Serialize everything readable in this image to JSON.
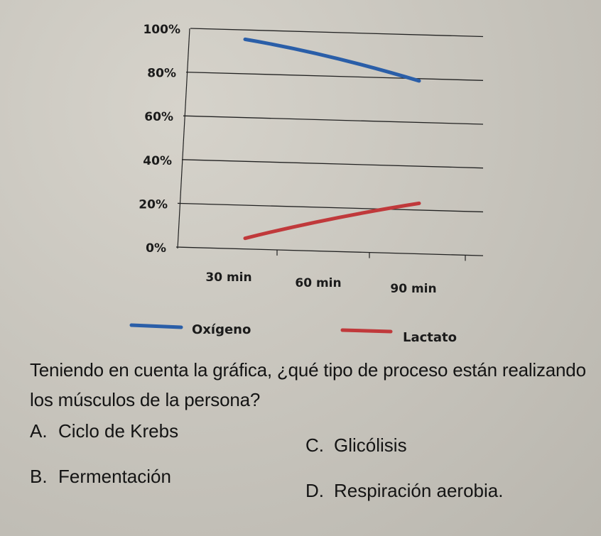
{
  "chart_data": {
    "type": "line",
    "categories": [
      "30 min",
      "60 min",
      "90 min"
    ],
    "y_ticks": [
      "100%",
      "80%",
      "60%",
      "40%",
      "20%",
      "0%"
    ],
    "y_tick_values": [
      100,
      80,
      60,
      40,
      20,
      0
    ],
    "ylim": [
      0,
      100
    ],
    "grid": true,
    "legend_position": "bottom",
    "series": [
      {
        "name": "Oxígeno",
        "color": "#2a5ea8",
        "values": [
          95,
          88,
          76
        ]
      },
      {
        "name": "Lactato",
        "color": "#c0393b",
        "values": [
          4,
          13,
          20
        ]
      }
    ]
  },
  "question": {
    "text": "Teniendo en cuenta la gráfica, ¿qué tipo de proceso están realizando los músculos de la persona?",
    "options": [
      {
        "letter": "A.",
        "text": "Ciclo de Krebs"
      },
      {
        "letter": "B.",
        "text": "Fermentación"
      },
      {
        "letter": "C.",
        "text": "Glicólisis"
      },
      {
        "letter": "D.",
        "text": "Respiración aerobia."
      }
    ]
  }
}
